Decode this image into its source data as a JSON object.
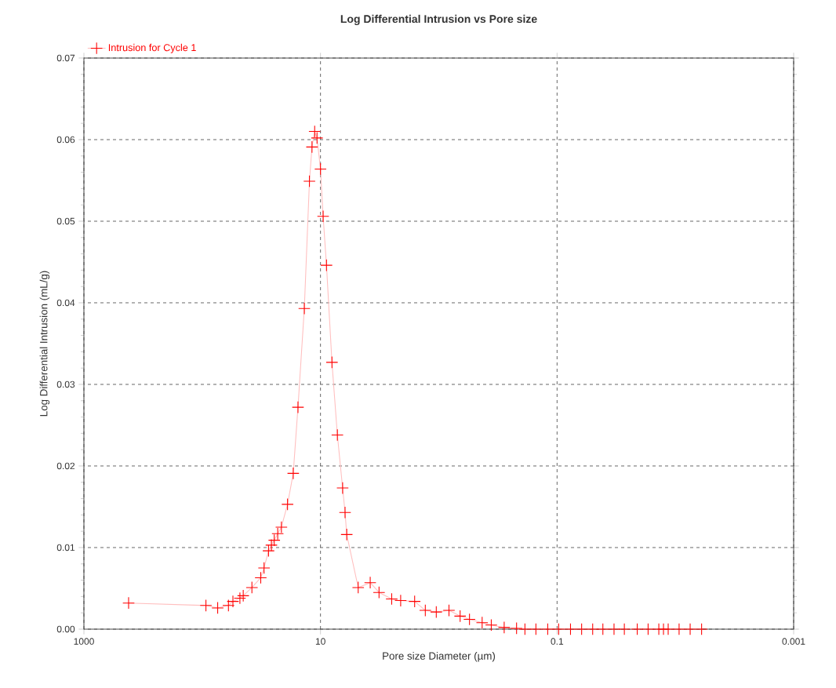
{
  "chart_data": {
    "type": "line",
    "title": "Log Differential Intrusion vs Pore size",
    "xlabel": "Pore size Diameter (µm)",
    "ylabel": "Log Differential Intrusion (mL/g)",
    "log": "x",
    "xlim": [
      1000,
      0.001
    ],
    "xticks": [
      1000,
      10,
      0.1,
      0.001
    ],
    "ylim": [
      0,
      0.07
    ],
    "yticks": [
      {
        "value": 0,
        "label": "0.00"
      },
      {
        "value": 0.01,
        "label": "0.01"
      },
      {
        "value": 0.02,
        "label": "0.02"
      },
      {
        "value": 0.03,
        "label": "0.03"
      },
      {
        "value": 0.04,
        "label": "0.04"
      },
      {
        "value": 0.05,
        "label": "0.05"
      },
      {
        "value": 0.06,
        "label": "0.06"
      },
      {
        "value": 0.07,
        "label": "0.07"
      }
    ],
    "grid": true,
    "legend": "top left",
    "marker": "cross",
    "line_style": "solid",
    "series": [
      {
        "name": "Intrusion for Cycle 1",
        "color": "#ff0000",
        "x": [
          419,
          93,
          74,
          60,
          55,
          48,
          45,
          38,
          32,
          30,
          27.5,
          26,
          24.6,
          23,
          21.4,
          19,
          17,
          15.5,
          13.7,
          12.4,
          11.8,
          11.2,
          10.7,
          10,
          9.5,
          8.9,
          8.0,
          7.2,
          6.5,
          6.2,
          6.0,
          4.8,
          3.8,
          3.2,
          2.5,
          2.1,
          1.6,
          1.3,
          1.05,
          0.82,
          0.66,
          0.55,
          0.43,
          0.36,
          0.28,
          0.22,
          0.187,
          0.151,
          0.12,
          0.097,
          0.077,
          0.062,
          0.05,
          0.041,
          0.033,
          0.027,
          0.021,
          0.017,
          0.0138,
          0.0126,
          0.0115,
          0.0093,
          0.0075,
          0.006
        ],
        "values": [
          0.0032,
          0.0029,
          0.0026,
          0.0029,
          0.0034,
          0.0038,
          0.0041,
          0.0051,
          0.0063,
          0.0075,
          0.0096,
          0.0103,
          0.0109,
          0.0117,
          0.0125,
          0.0153,
          0.0191,
          0.0272,
          0.0393,
          0.0549,
          0.0591,
          0.061,
          0.0602,
          0.0564,
          0.0506,
          0.0446,
          0.0327,
          0.0238,
          0.0173,
          0.0143,
          0.0116,
          0.0051,
          0.0057,
          0.0045,
          0.0037,
          0.0035,
          0.0034,
          0.0023,
          0.0021,
          0.0023,
          0.0016,
          0.0012,
          0.0008,
          0.0005,
          0.0002,
          0.0001,
          0,
          0,
          0,
          0,
          0,
          0,
          0,
          0,
          0,
          0,
          0,
          0,
          0,
          0,
          0,
          0,
          0,
          0
        ]
      }
    ]
  }
}
